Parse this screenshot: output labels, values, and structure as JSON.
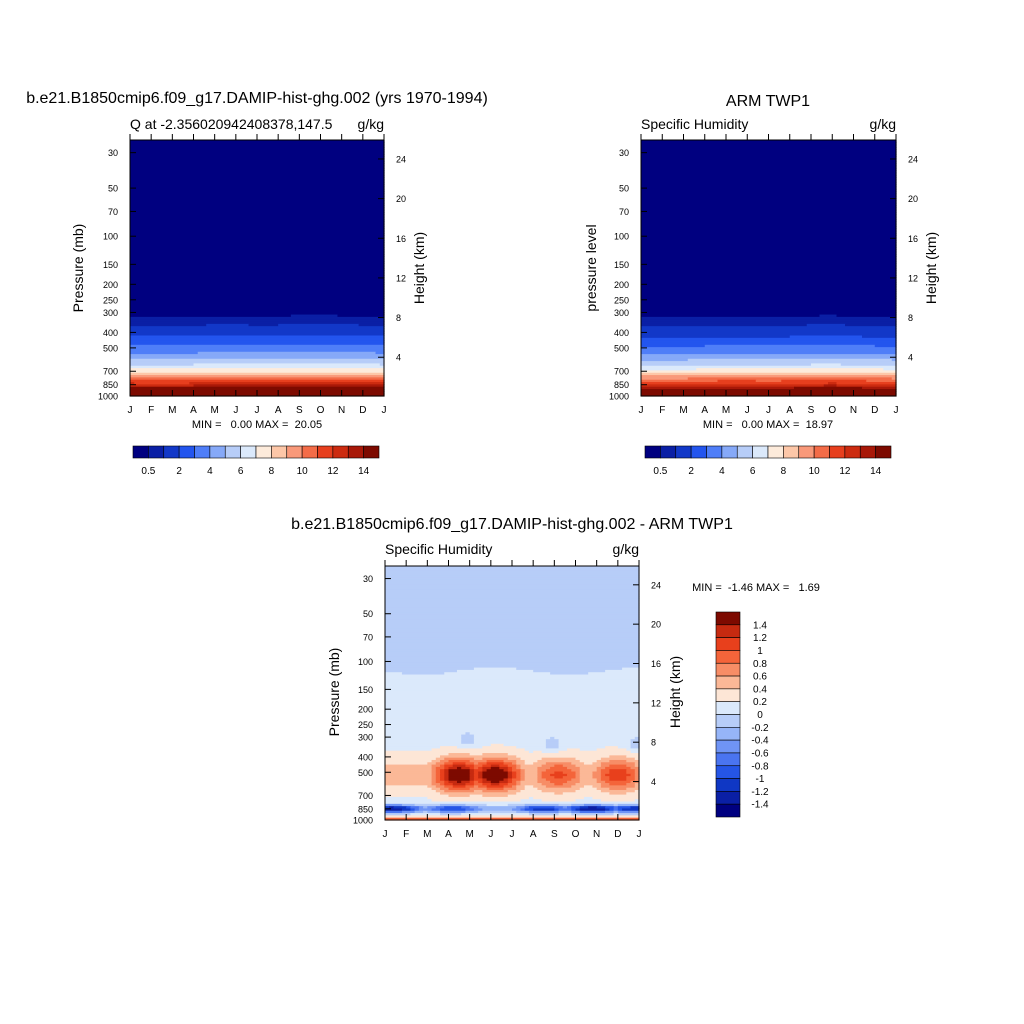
{
  "chart_data": [
    {
      "type": "heatmap",
      "id": "model",
      "title": "b.e21.B1850cmip6.f09_g17.DAMIP-hist-ghg.002 (yrs 1970-1994)",
      "subtitle_left": "Q at -2.356020942408378,147.5",
      "subtitle_right": "g/kg",
      "ylabel": "Pressure (mb)",
      "ylabel_right": "Height (km)",
      "x_ticks": [
        "J",
        "F",
        "M",
        "A",
        "M",
        "J",
        "J",
        "A",
        "S",
        "O",
        "N",
        "D",
        "J"
      ],
      "y_ticks": [
        30,
        50,
        70,
        100,
        150,
        200,
        250,
        300,
        400,
        500,
        700,
        850,
        1000
      ],
      "ylim": [
        1000,
        25
      ],
      "height_ticks_km": [
        4,
        8,
        12,
        16,
        20,
        24
      ],
      "stats_text": "MIN =   0.00 MAX =  20.05",
      "min": 0.0,
      "max": 20.05,
      "colorbar_labels": [
        "0.5",
        "2",
        "4",
        "6",
        "8",
        "10",
        "12",
        "14"
      ],
      "colorbar_levels": [
        0.5,
        1,
        2,
        3,
        4,
        5,
        6,
        7,
        8,
        9,
        10,
        11,
        12,
        13,
        14
      ],
      "colorbar_colors": [
        "#000080",
        "#0a1fa5",
        "#1238c8",
        "#2355ee",
        "#4f7ef8",
        "#86a9f8",
        "#b7cdf8",
        "#dbe9fb",
        "#fdebdb",
        "#fdc7a8",
        "#f9997a",
        "#f36c48",
        "#e73f1e",
        "#cc2b10",
        "#a81808",
        "#7d0a00"
      ],
      "profile": {
        "pressure": [
          25,
          250,
          300,
          350,
          400,
          450,
          500,
          550,
          600,
          650,
          700,
          750,
          800,
          850,
          900,
          950,
          1000
        ],
        "q": [
          0.01,
          0.05,
          0.3,
          0.8,
          1.6,
          2.5,
          3.3,
          4.2,
          5.2,
          6.3,
          7.6,
          9.2,
          11.0,
          12.6,
          14.6,
          16.2,
          18.0
        ]
      },
      "seasonal_shift": [
        0.0,
        -8,
        -10,
        0,
        20,
        15,
        10,
        10,
        30,
        30,
        20,
        10,
        0
      ]
    },
    {
      "type": "heatmap",
      "id": "obs",
      "title": "ARM TWP1",
      "subtitle_left": "Specific Humidity",
      "subtitle_right": "g/kg",
      "ylabel": "pressure level",
      "ylabel_right": "Height (km)",
      "x_ticks": [
        "J",
        "F",
        "M",
        "A",
        "M",
        "J",
        "J",
        "A",
        "S",
        "O",
        "N",
        "D",
        "J"
      ],
      "y_ticks": [
        30,
        50,
        70,
        100,
        150,
        200,
        250,
        300,
        400,
        500,
        700,
        850,
        1000
      ],
      "ylim": [
        1000,
        25
      ],
      "height_ticks_km": [
        4,
        8,
        12,
        16,
        20,
        24
      ],
      "stats_text": "MIN =   0.00 MAX =  18.97",
      "min": 0.0,
      "max": 18.97,
      "colorbar_labels": [
        "0.5",
        "2",
        "4",
        "6",
        "8",
        "10",
        "12",
        "14"
      ],
      "colorbar_levels": [
        0.5,
        1,
        2,
        3,
        4,
        5,
        6,
        7,
        8,
        9,
        10,
        11,
        12,
        13,
        14
      ],
      "colorbar_colors": [
        "#000080",
        "#0a1fa5",
        "#1238c8",
        "#2355ee",
        "#4f7ef8",
        "#86a9f8",
        "#b7cdf8",
        "#dbe9fb",
        "#fdebdb",
        "#fdc7a8",
        "#f9997a",
        "#f36c48",
        "#e73f1e",
        "#cc2b10",
        "#a81808",
        "#7d0a00"
      ],
      "profile": {
        "pressure": [
          25,
          260,
          300,
          350,
          400,
          450,
          500,
          550,
          600,
          650,
          700,
          750,
          800,
          850,
          900,
          950,
          1000
        ],
        "q": [
          0.01,
          0.05,
          0.3,
          0.8,
          1.5,
          2.4,
          3.2,
          4.1,
          5.1,
          6.2,
          7.5,
          9.0,
          10.8,
          12.4,
          14.3,
          16.0,
          17.5
        ]
      },
      "seasonal_shift": [
        0,
        0,
        0,
        5,
        10,
        10,
        5,
        10,
        20,
        25,
        15,
        5,
        0
      ]
    },
    {
      "type": "heatmap",
      "id": "diff",
      "title": "b.e21.B1850cmip6.f09_g17.DAMIP-hist-ghg.002 - ARM TWP1",
      "subtitle_left": "Specific Humidity",
      "subtitle_right": "g/kg",
      "ylabel": "Pressure (mb)",
      "ylabel_right": "Height (km)",
      "x_ticks": [
        "J",
        "F",
        "M",
        "A",
        "M",
        "J",
        "J",
        "A",
        "S",
        "O",
        "N",
        "D",
        "J"
      ],
      "y_ticks": [
        30,
        50,
        70,
        100,
        150,
        200,
        250,
        300,
        400,
        500,
        700,
        850,
        1000
      ],
      "ylim": [
        1000,
        25
      ],
      "height_ticks_km": [
        4,
        8,
        12,
        16,
        20,
        24
      ],
      "stats_text": "MIN =  -1.46 MAX =   1.69",
      "min": -1.46,
      "max": 1.69,
      "colorbar_labels": [
        "1.4",
        "1.2",
        "1",
        "0.8",
        "0.6",
        "0.4",
        "0.2",
        "0",
        "-0.2",
        "-0.4",
        "-0.6",
        "-0.8",
        "-1",
        "-1.2",
        "-1.4"
      ],
      "colorbar_colors": [
        "#7d0a00",
        "#c62a10",
        "#e8401c",
        "#f4643a",
        "#f78d66",
        "#fbb897",
        "#fde6d6",
        "#dbe9fb",
        "#b7cdf8",
        "#96b5f8",
        "#6f94f5",
        "#4a74f0",
        "#2555e6",
        "#0f37c4",
        "#0a1fa5",
        "#000080"
      ],
      "levels": [
        -1.4,
        -1.2,
        -1,
        -0.8,
        -0.6,
        -0.4,
        -0.2,
        0,
        0.2,
        0.4,
        0.6,
        0.8,
        1,
        1.2,
        1.4
      ],
      "features": {
        "upper_zero_boundary_mb": 115,
        "mid_positive_center_mb": 520,
        "mid_positive_peaks": [
          {
            "month": 3.5,
            "value": 1.5
          },
          {
            "month": 5.2,
            "value": 1.5
          },
          {
            "month": 8.2,
            "value": 0.9
          },
          {
            "month": 11.0,
            "value": 1.0
          }
        ],
        "low_negative_center_mb": 850,
        "low_negative_peaks": [
          {
            "month": 0.3,
            "value": -1.4
          },
          {
            "month": 3.2,
            "value": -1.0
          },
          {
            "month": 7.5,
            "value": -1.1
          },
          {
            "month": 9.8,
            "value": -1.4
          },
          {
            "month": 11.8,
            "value": -1.2
          }
        ],
        "surface_positive_peak": 0.8,
        "small_negative_patches": [
          {
            "month": 3.9,
            "mb": 310,
            "value": -0.1
          },
          {
            "month": 7.9,
            "mb": 330,
            "value": -0.1
          },
          {
            "month": 11.9,
            "mb": 330,
            "value": -0.1
          }
        ]
      }
    }
  ]
}
